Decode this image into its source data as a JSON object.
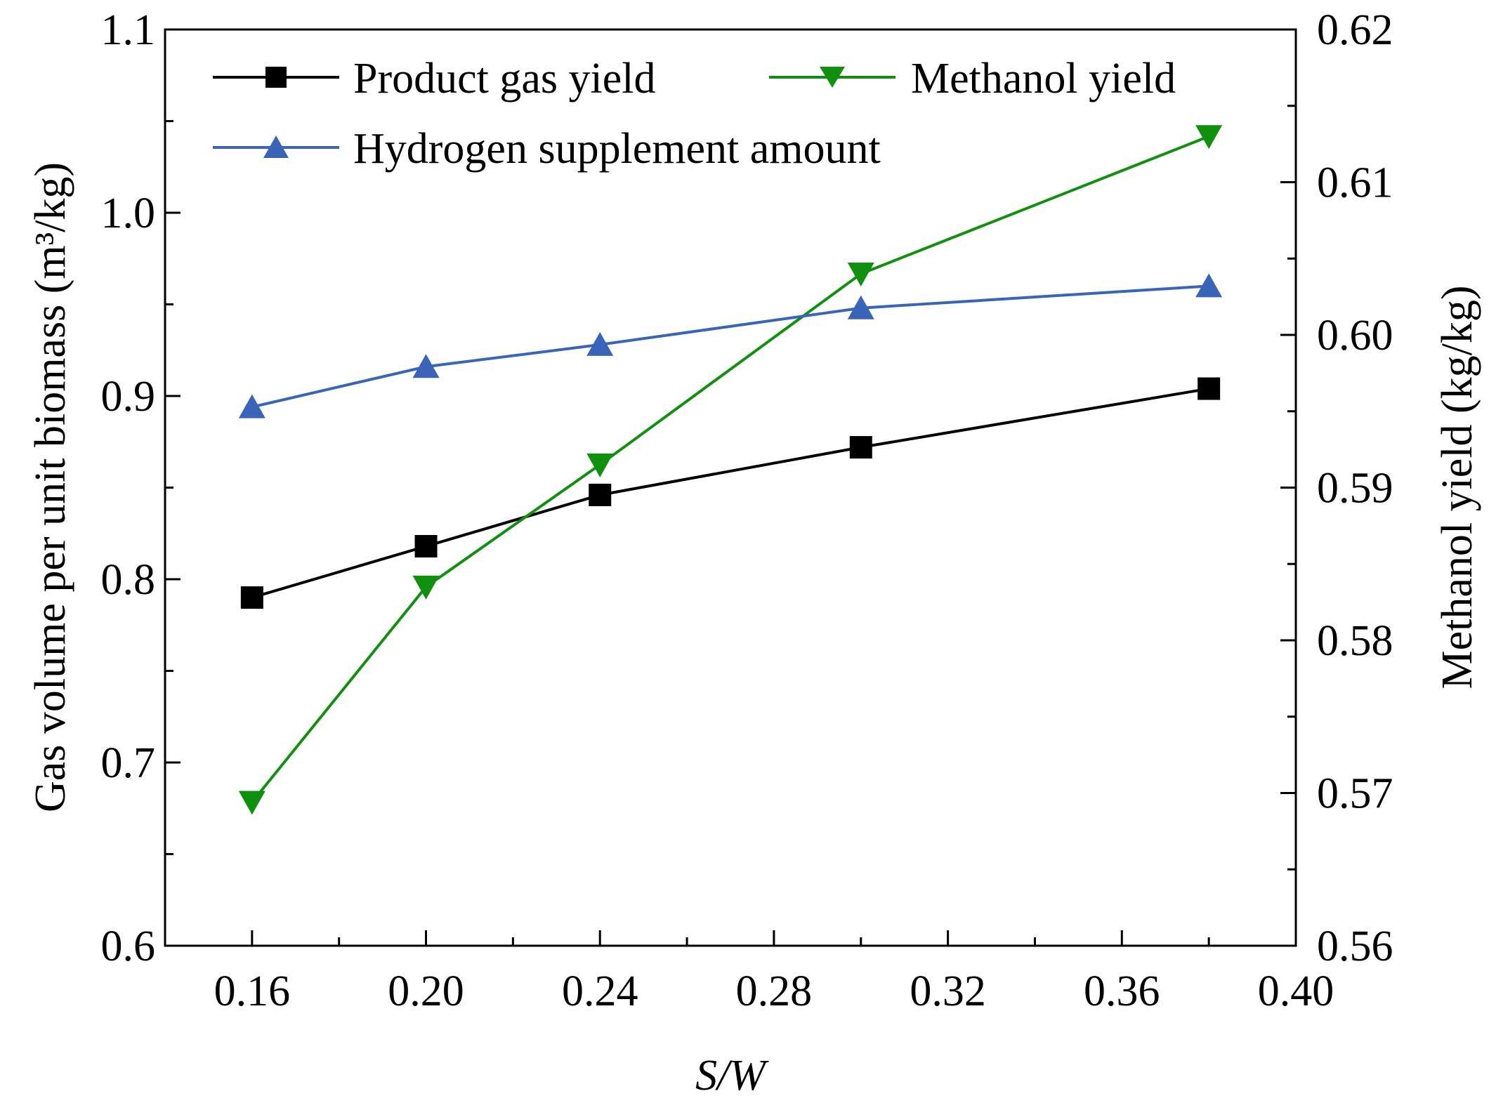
{
  "chart_data": {
    "type": "line",
    "title": "",
    "xlabel": "S/W",
    "ylabel": "Gas volume per unit biomass (m³/kg)",
    "y2label": "Methanol yield (kg/kg)",
    "xlim": [
      0.14,
      0.4
    ],
    "ylim": [
      0.6,
      1.1
    ],
    "y2lim": [
      0.56,
      0.62
    ],
    "x_ticks": [
      "0.16",
      "0.20",
      "0.24",
      "0.28",
      "0.32",
      "0.36",
      "0.40"
    ],
    "y_ticks": [
      "0.6",
      "0.7",
      "0.8",
      "0.9",
      "1.0",
      "1.1"
    ],
    "y2_ticks": [
      "0.56",
      "0.57",
      "0.58",
      "0.59",
      "0.60",
      "0.61",
      "0.62"
    ],
    "x": [
      0.16,
      0.2,
      0.24,
      0.3,
      0.38
    ],
    "legend_position": "top",
    "series": [
      {
        "name": "Product gas yield",
        "axis": "left",
        "marker": "square",
        "color": "#000000",
        "values": [
          0.79,
          0.818,
          0.846,
          0.872,
          0.904
        ]
      },
      {
        "name": "Methanol yield",
        "axis": "right",
        "marker": "triangle-down",
        "color": "#11900f",
        "values": [
          0.5694,
          0.5835,
          0.5915,
          0.604,
          0.613
        ]
      },
      {
        "name": "Hydrogen supplement amount",
        "axis": "left",
        "marker": "triangle-up",
        "color": "#3a64b8",
        "values": [
          0.894,
          0.916,
          0.928,
          0.948,
          0.96
        ]
      }
    ]
  }
}
